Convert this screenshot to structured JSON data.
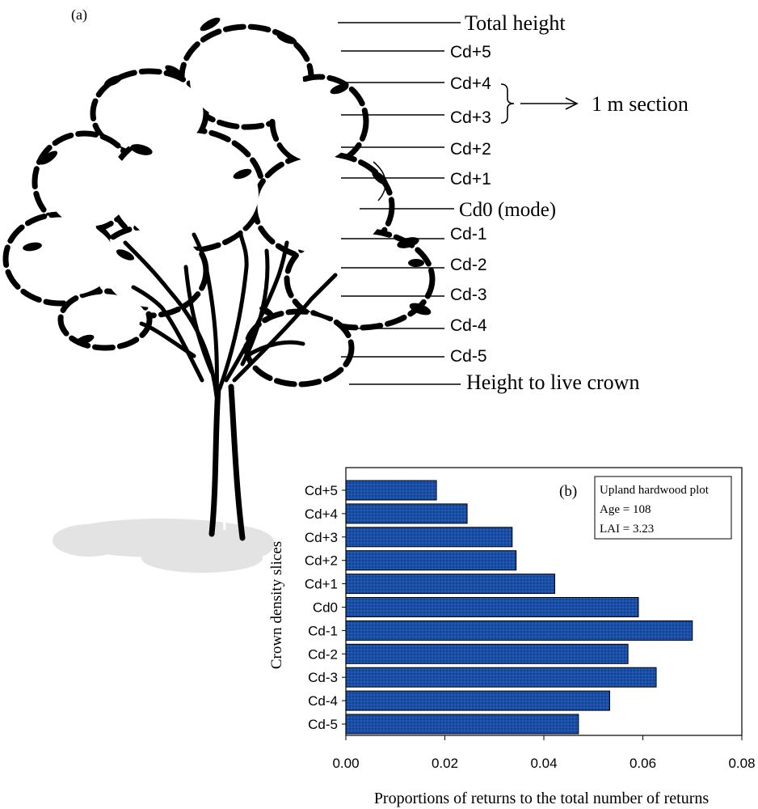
{
  "panel_a": {
    "label": "(a)",
    "slice_labels": {
      "total_height": "Total height",
      "cd_p5": "Cd+5",
      "cd_p4": "Cd+4",
      "cd_p3": "Cd+3",
      "cd_p2": "Cd+2",
      "cd_p1": "Cd+1",
      "cd0": "Cd0 (mode)",
      "cd_m1": "Cd-1",
      "cd_m2": "Cd-2",
      "cd_m3": "Cd-3",
      "cd_m4": "Cd-4",
      "cd_m5": "Cd-5",
      "live_crown": "Height to live crown"
    },
    "section_label": "1 m section"
  },
  "panel_b": {
    "label": "(b)",
    "info_box": {
      "line1": "Upland hardwood plot",
      "line2": "Age = 108",
      "line3": "LAI = 3.23"
    }
  },
  "chart_data": {
    "type": "bar",
    "orientation": "horizontal",
    "categories": [
      "Cd+5",
      "Cd+4",
      "Cd+3",
      "Cd+2",
      "Cd+1",
      "Cd0",
      "Cd-1",
      "Cd-2",
      "Cd-3",
      "Cd-4",
      "Cd-5"
    ],
    "values": [
      0.0183,
      0.0245,
      0.0336,
      0.0344,
      0.0422,
      0.0591,
      0.07,
      0.057,
      0.0627,
      0.0533,
      0.047
    ],
    "xlabel": "Proportions of returns to the total number of returns",
    "ylabel": "Crown density slices",
    "xlim": [
      0,
      0.08
    ],
    "xticks": [
      "0.00",
      "0.02",
      "0.04",
      "0.06",
      "0.08"
    ],
    "grid": false,
    "bar_color": "#1a4fa8"
  }
}
